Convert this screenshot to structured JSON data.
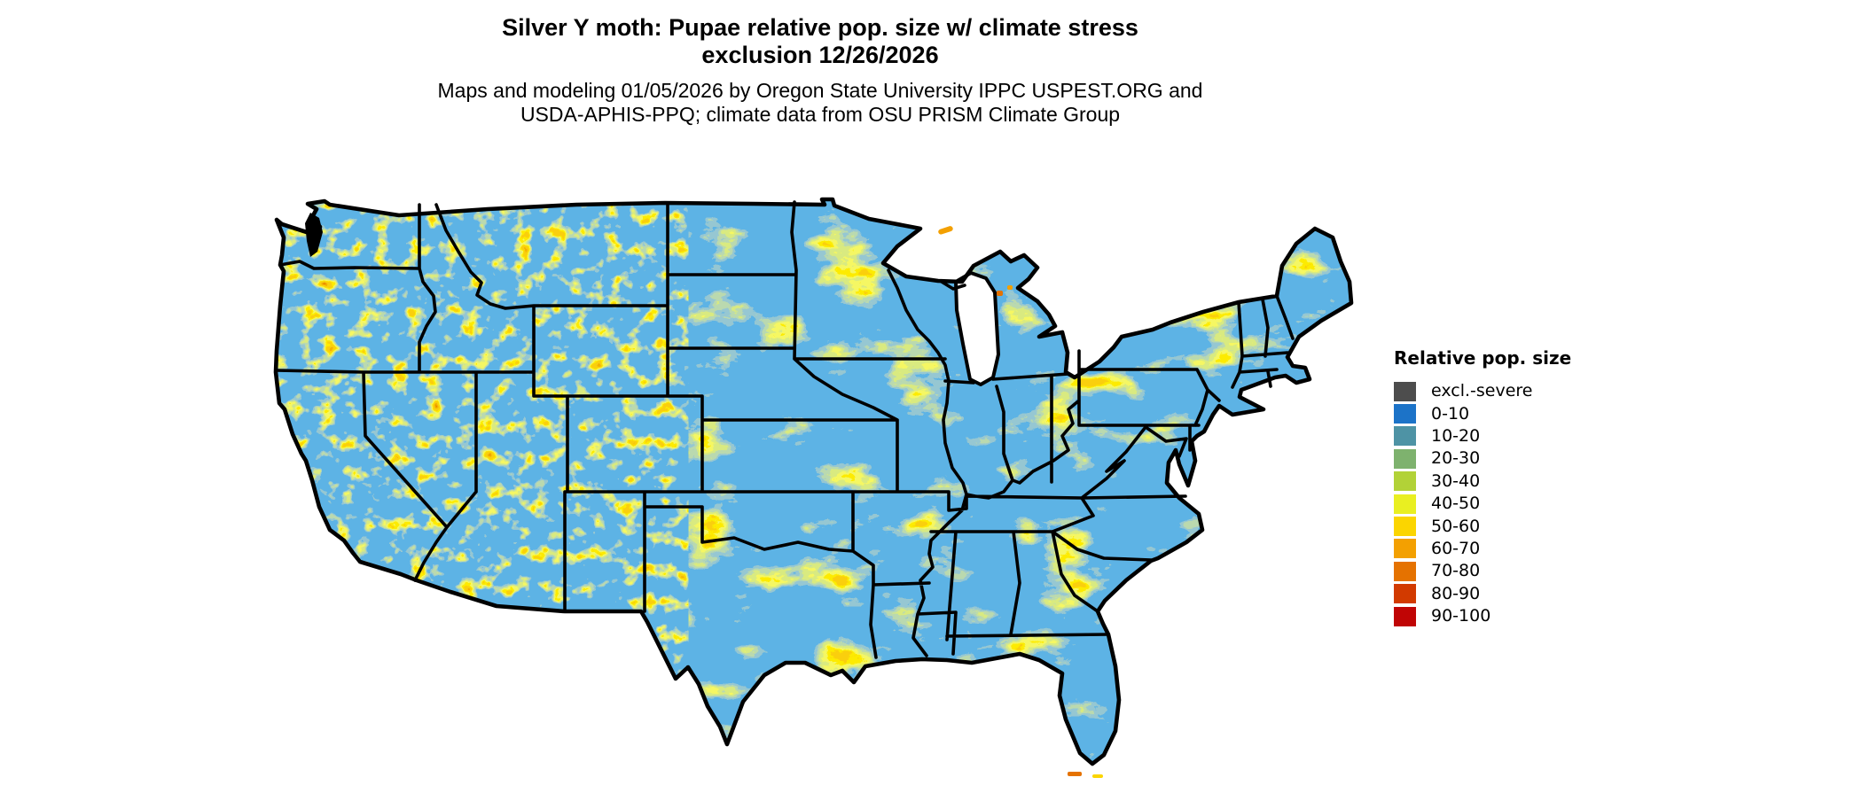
{
  "title": {
    "line1": "Silver Y moth: Pupae relative pop. size w/ climate stress",
    "line2": "exclusion 12/26/2026"
  },
  "subtitle": {
    "line1": "Maps and modeling 01/05/2026 by Oregon State University IPPC USPEST.ORG and",
    "line2": "USDA-APHIS-PPQ; climate data from OSU PRISM Climate Group"
  },
  "legend": {
    "title": "Relative pop. size",
    "items": [
      {
        "label": "excl.-severe",
        "color": "#4D4D4D"
      },
      {
        "label": "0-10",
        "color": "#1C73C8"
      },
      {
        "label": "10-20",
        "color": "#4E93A5"
      },
      {
        "label": "20-30",
        "color": "#7EB26E"
      },
      {
        "label": "30-40",
        "color": "#B2D237"
      },
      {
        "label": "40-50",
        "color": "#E9EF21"
      },
      {
        "label": "50-60",
        "color": "#FBD500"
      },
      {
        "label": "60-70",
        "color": "#F3A001"
      },
      {
        "label": "70-80",
        "color": "#E57200"
      },
      {
        "label": "80-90",
        "color": "#D23A00"
      },
      {
        "label": "90-100",
        "color": "#C00505"
      }
    ]
  },
  "map": {
    "region": "Contiguous United States",
    "base_color": "#1C73C8",
    "border_color": "#000000",
    "water_color": "#FFFFFF"
  }
}
